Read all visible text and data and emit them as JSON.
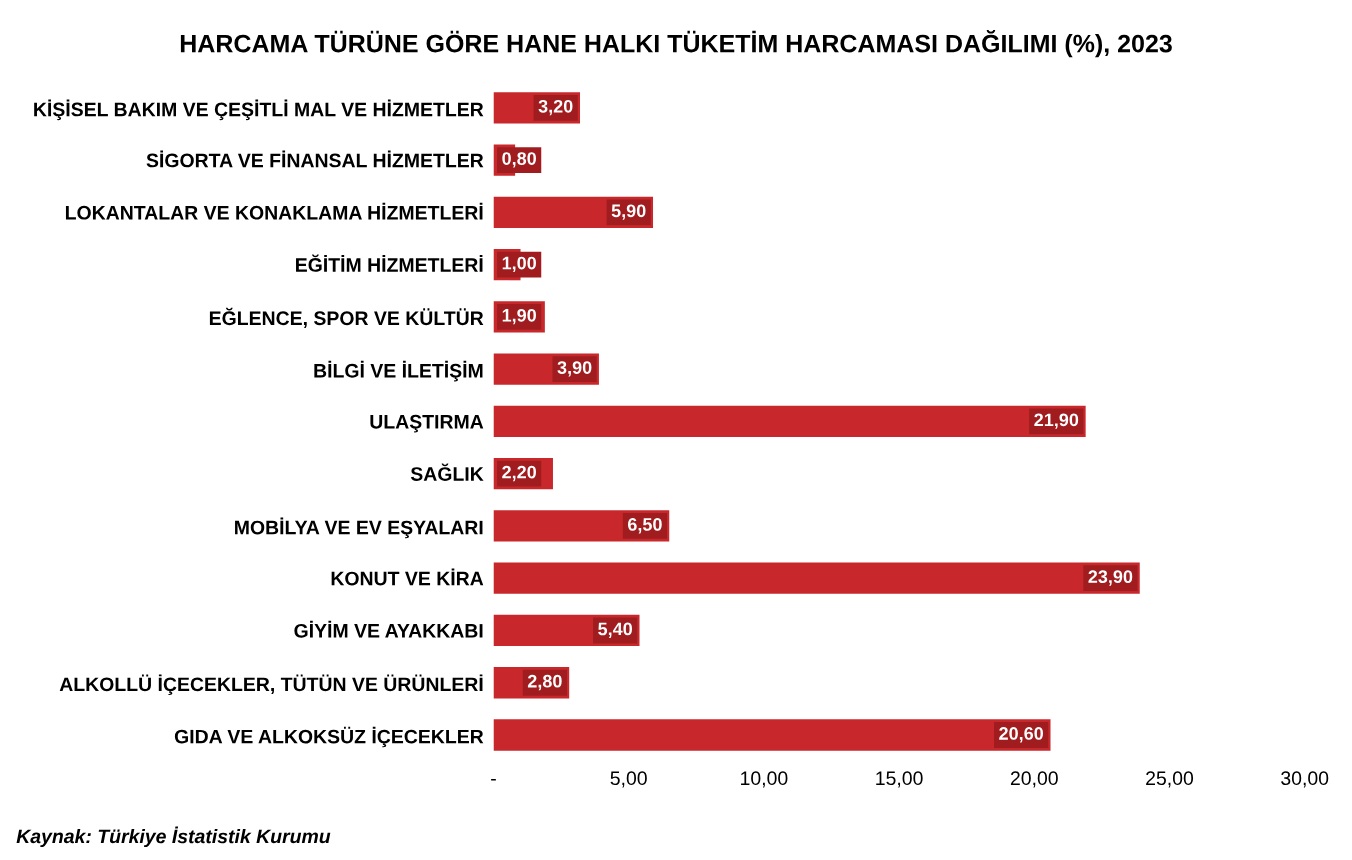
{
  "chart_data": {
    "type": "bar",
    "orientation": "horizontal",
    "title": "HARCAMA TÜRÜNE GÖRE HANE HALKI TÜKETİM HARCAMASI DAĞILIMI (%), 2023",
    "categories": [
      "KİŞİSEL BAKIM VE ÇEŞİTLİ MAL VE HİZMETLER",
      "SİGORTA VE FİNANSAL HİZMETLER",
      "LOKANTALAR VE KONAKLAMA HİZMETLERİ",
      "EĞİTİM HİZMETLERİ",
      "EĞLENCE, SPOR VE KÜLTÜR",
      "BİLGİ VE İLETİŞİM",
      "ULAŞTIRMA",
      "SAĞLIK",
      "MOBİLYA VE EV EŞYALARI",
      "KONUT VE KİRA",
      "GİYİM VE AYAKKABI",
      "ALKOLLÜ İÇECEKLER, TÜTÜN VE ÜRÜNLERİ",
      "GIDA VE ALKOKSÜZ İÇECEKLER"
    ],
    "values": [
      3.2,
      0.8,
      5.9,
      1.0,
      1.9,
      3.9,
      21.9,
      2.2,
      6.5,
      23.9,
      5.4,
      2.8,
      20.6
    ],
    "value_labels": [
      "3,20",
      "0,80",
      "5,90",
      "1,00",
      "1,90",
      "3,90",
      "21,90",
      "2,20",
      "6,50",
      "23,90",
      "5,40",
      "2,80",
      "20,60"
    ],
    "color": "#c8282b",
    "xlim": [
      0,
      30
    ],
    "xticks": [
      {
        "value": 0,
        "label": "-"
      },
      {
        "value": 5,
        "label": "5,00"
      },
      {
        "value": 10,
        "label": "10,00"
      },
      {
        "value": 15,
        "label": "15,00"
      },
      {
        "value": 20,
        "label": "20,00"
      },
      {
        "value": 25,
        "label": "25,00"
      },
      {
        "value": 30,
        "label": "30,00"
      }
    ],
    "grid": false,
    "legend": false,
    "annotations": [
      "Kaynak: Türkiye İstatistik Kurumu"
    ]
  }
}
